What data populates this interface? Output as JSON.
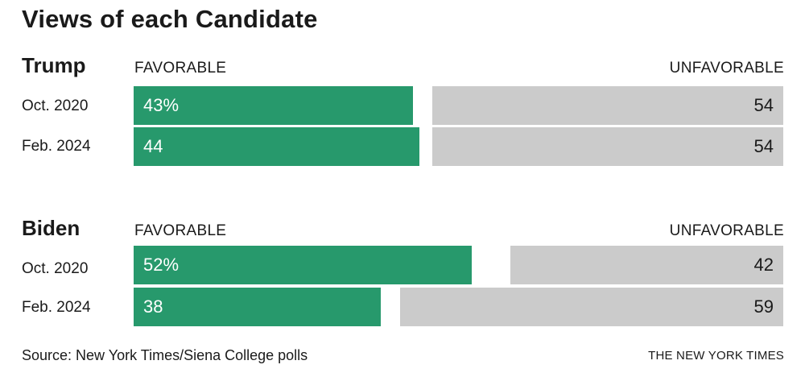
{
  "title": "Views of each Candidate",
  "headers": {
    "favorable": "FAVORABLE",
    "unfavorable": "UNFAVORABLE"
  },
  "source": "Source: New York Times/Siena College polls",
  "credit": "THE NEW YORK TIMES",
  "colors": {
    "favorable": "#27996c",
    "unfavorable": "#cbcbcb"
  },
  "chart_data": {
    "type": "bar",
    "title": "Views of each Candidate",
    "series": [
      {
        "name": "FAVORABLE"
      },
      {
        "name": "UNFAVORABLE"
      }
    ],
    "groups": [
      {
        "name": "Trump",
        "rows": [
          {
            "label": "Oct. 2020",
            "favorable": 43,
            "unfavorable": 54,
            "favorable_label": "43%",
            "unfavorable_label": "54"
          },
          {
            "label": "Feb. 2024",
            "favorable": 44,
            "unfavorable": 54,
            "favorable_label": "44",
            "unfavorable_label": "54"
          }
        ]
      },
      {
        "name": "Biden",
        "rows": [
          {
            "label": "Oct. 2020",
            "favorable": 52,
            "unfavorable": 42,
            "favorable_label": "52%",
            "unfavorable_label": "42"
          },
          {
            "label": "Feb. 2024",
            "favorable": 38,
            "unfavorable": 59,
            "favorable_label": "38",
            "unfavorable_label": "59"
          }
        ]
      }
    ],
    "xlim": [
      0,
      100
    ]
  }
}
